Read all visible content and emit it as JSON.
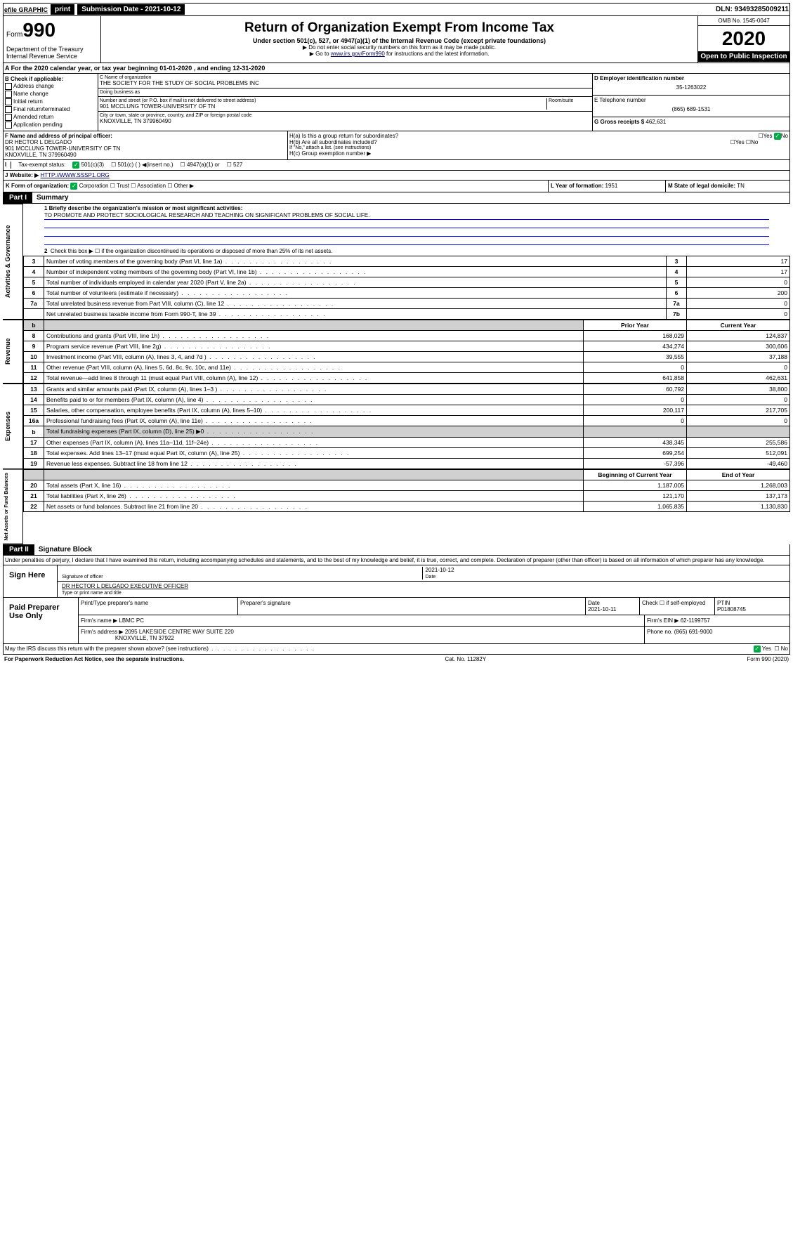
{
  "topbar": {
    "efile": "efile GRAPHIC",
    "print": "print",
    "subdate_lbl": "Submission Date - ",
    "subdate": "2021-10-12",
    "dln": "DLN: 93493285009211"
  },
  "hdr": {
    "form": "Form",
    "num": "990",
    "dept": "Department of the Treasury\nInternal Revenue Service",
    "title": "Return of Organization Exempt From Income Tax",
    "sub": "Under section 501(c), 527, or 4947(a)(1) of the Internal Revenue Code (except private foundations)",
    "note1": "▶ Do not enter social security numbers on this form as it may be made public.",
    "note2_pre": "▶ Go to ",
    "note2_link": "www.irs.gov/Form990",
    "note2_post": " for instructions and the latest information.",
    "omb": "OMB No. 1545-0047",
    "year": "2020",
    "open": "Open to Public Inspection"
  },
  "rowA": "A  For the 2020 calendar year, or tax year beginning 01-01-2020    , and ending 12-31-2020",
  "boxB": {
    "title": "B Check if applicable:",
    "items": [
      "Address change",
      "Name change",
      "Initial return",
      "Final return/terminated",
      "Amended return",
      "Application pending"
    ]
  },
  "boxC": {
    "name_lbl": "C Name of organization",
    "name": "THE SOCIETY FOR THE STUDY OF SOCIAL PROBLEMS INC",
    "dba_lbl": "Doing business as",
    "dba": "",
    "addr_lbl": "Number and street (or P.O. box if mail is not delivered to street address)",
    "room_lbl": "Room/suite",
    "addr": "901 MCCLUNG TOWER-UNIVERSITY OF TN",
    "city_lbl": "City or town, state or province, country, and ZIP or foreign postal code",
    "city": "KNOXVILLE, TN  379960490"
  },
  "boxD": {
    "lbl": "D Employer identification number",
    "val": "35-1263022"
  },
  "boxE": {
    "lbl": "E Telephone number",
    "val": "(865) 689-1531"
  },
  "boxG": {
    "lbl": "G Gross receipts $",
    "val": "462,631"
  },
  "rowF": {
    "lbl": "F  Name and address of principal officer:",
    "name": "DR HECTOR L DELGADO",
    "addr1": "901 MCCLUNG TOWER-UNIVERSITY OF TN",
    "addr2": "KNOXVILLE, TN  379960490",
    "ha": "H(a)  Is this a group return for subordinates?",
    "ha_no": "No",
    "hb": "H(b)  Are all subordinates included?",
    "hb_note": "If \"No,\" attach a list. (see instructions)",
    "hc": "H(c)  Group exemption number ▶"
  },
  "rowI": {
    "lbl": "Tax-exempt status:",
    "c1": "501(c)(3)",
    "c2": "501(c) (  ) ◀(insert no.)",
    "c3": "4947(a)(1) or",
    "c4": "527"
  },
  "rowJ": {
    "lbl": "J",
    "w": "Website: ▶",
    "url": "HTTP://WWW.SSSP1.ORG"
  },
  "rowK": {
    "k": "K Form of organization:",
    "corp": "Corporation",
    "trust": "Trust",
    "assoc": "Association",
    "other": "Other ▶",
    "l": "L Year of formation: ",
    "lval": "1951",
    "m": "M State of legal domicile: ",
    "mval": "TN"
  },
  "part1": {
    "hdr": "Part I",
    "title": "Summary"
  },
  "mission": {
    "q": "1  Briefly describe the organization's mission or most significant activities:",
    "text": "TO PROMOTE AND PROTECT SOCIOLOGICAL RESEARCH AND TEACHING ON SIGNIFICANT PROBLEMS OF SOCIAL LIFE."
  },
  "gov": {
    "l2": "Check this box ▶ ☐  if the organization discontinued its operations or disposed of more than 25% of its net assets.",
    "rows": [
      {
        "n": "3",
        "d": "Number of voting members of the governing body (Part VI, line 1a)",
        "r": "3",
        "v": "17"
      },
      {
        "n": "4",
        "d": "Number of independent voting members of the governing body (Part VI, line 1b)",
        "r": "4",
        "v": "17"
      },
      {
        "n": "5",
        "d": "Total number of individuals employed in calendar year 2020 (Part V, line 2a)",
        "r": "5",
        "v": "0"
      },
      {
        "n": "6",
        "d": "Total number of volunteers (estimate if necessary)",
        "r": "6",
        "v": "200"
      },
      {
        "n": "7a",
        "d": "Total unrelated business revenue from Part VIII, column (C), line 12",
        "r": "7a",
        "v": "0"
      },
      {
        "n": "",
        "d": "Net unrelated business taxable income from Form 990-T, line 39",
        "r": "7b",
        "v": "0"
      }
    ]
  },
  "revhdr": {
    "py": "Prior Year",
    "cy": "Current Year"
  },
  "rev": [
    {
      "n": "8",
      "d": "Contributions and grants (Part VIII, line 1h)",
      "p": "168,029",
      "c": "124,837"
    },
    {
      "n": "9",
      "d": "Program service revenue (Part VIII, line 2g)",
      "p": "434,274",
      "c": "300,606"
    },
    {
      "n": "10",
      "d": "Investment income (Part VIII, column (A), lines 3, 4, and 7d )",
      "p": "39,555",
      "c": "37,188"
    },
    {
      "n": "11",
      "d": "Other revenue (Part VIII, column (A), lines 5, 6d, 8c, 9c, 10c, and 11e)",
      "p": "0",
      "c": "0"
    },
    {
      "n": "12",
      "d": "Total revenue—add lines 8 through 11 (must equal Part VIII, column (A), line 12)",
      "p": "641,858",
      "c": "462,631"
    }
  ],
  "exp": [
    {
      "n": "13",
      "d": "Grants and similar amounts paid (Part IX, column (A), lines 1–3 )",
      "p": "60,792",
      "c": "38,800"
    },
    {
      "n": "14",
      "d": "Benefits paid to or for members (Part IX, column (A), line 4)",
      "p": "0",
      "c": "0"
    },
    {
      "n": "15",
      "d": "Salaries, other compensation, employee benefits (Part IX, column (A), lines 5–10)",
      "p": "200,117",
      "c": "217,705"
    },
    {
      "n": "16a",
      "d": "Professional fundraising fees (Part IX, column (A), line 11e)",
      "p": "0",
      "c": "0"
    },
    {
      "n": "b",
      "d": "Total fundraising expenses (Part IX, column (D), line 25) ▶0",
      "p": "",
      "c": "",
      "grey": true
    },
    {
      "n": "17",
      "d": "Other expenses (Part IX, column (A), lines 11a–11d, 11f–24e)",
      "p": "438,345",
      "c": "255,586"
    },
    {
      "n": "18",
      "d": "Total expenses. Add lines 13–17 (must equal Part IX, column (A), line 25)",
      "p": "699,254",
      "c": "512,091"
    },
    {
      "n": "19",
      "d": "Revenue less expenses. Subtract line 18 from line 12",
      "p": "-57,396",
      "c": "-49,460"
    }
  ],
  "nethdr": {
    "b": "Beginning of Current Year",
    "e": "End of Year"
  },
  "net": [
    {
      "n": "20",
      "d": "Total assets (Part X, line 16)",
      "p": "1,187,005",
      "c": "1,268,003"
    },
    {
      "n": "21",
      "d": "Total liabilities (Part X, line 26)",
      "p": "121,170",
      "c": "137,173"
    },
    {
      "n": "22",
      "d": "Net assets or fund balances. Subtract line 21 from line 20",
      "p": "1,065,835",
      "c": "1,130,830"
    }
  ],
  "part2": {
    "hdr": "Part II",
    "title": "Signature Block"
  },
  "sig": {
    "decl": "Under penalties of perjury, I declare that I have examined this return, including accompanying schedules and statements, and to the best of my knowledge and belief, it is true, correct, and complete. Declaration of preparer (other than officer) is based on all information of which preparer has any knowledge.",
    "sign": "Sign Here",
    "sig_lbl": "Signature of officer",
    "date": "2021-10-12",
    "date_lbl": "Date",
    "name": "DR HECTOR L DELGADO  EXECUTIVE OFFICER",
    "name_lbl": "Type or print name and title"
  },
  "prep": {
    "title": "Paid Preparer Use Only",
    "h1": "Print/Type preparer's name",
    "h2": "Preparer's signature",
    "h3": "Date",
    "h3v": "2021-10-11",
    "h4": "Check ☐ if self-employed",
    "h5": "PTIN",
    "h5v": "P01808745",
    "firm_lbl": "Firm's name    ▶",
    "firm": "LBMC PC",
    "ein_lbl": "Firm's EIN ▶",
    "ein": "62-1199757",
    "addr_lbl": "Firm's address ▶",
    "addr": "2095 LAKESIDE CENTRE WAY SUITE 220",
    "city": "KNOXVILLE, TN  37922",
    "ph_lbl": "Phone no.",
    "ph": "(865) 691-9000"
  },
  "foot": {
    "q": "May the IRS discuss this return with the preparer shown above? (see instructions)",
    "yes": "Yes",
    "no": "No",
    "pra": "For Paperwork Reduction Act Notice, see the separate instructions.",
    "cat": "Cat. No. 11282Y",
    "form": "Form 990 (2020)"
  },
  "vlabels": {
    "gov": "Activities & Governance",
    "rev": "Revenue",
    "exp": "Expenses",
    "net": "Net Assets or Fund Balances"
  }
}
